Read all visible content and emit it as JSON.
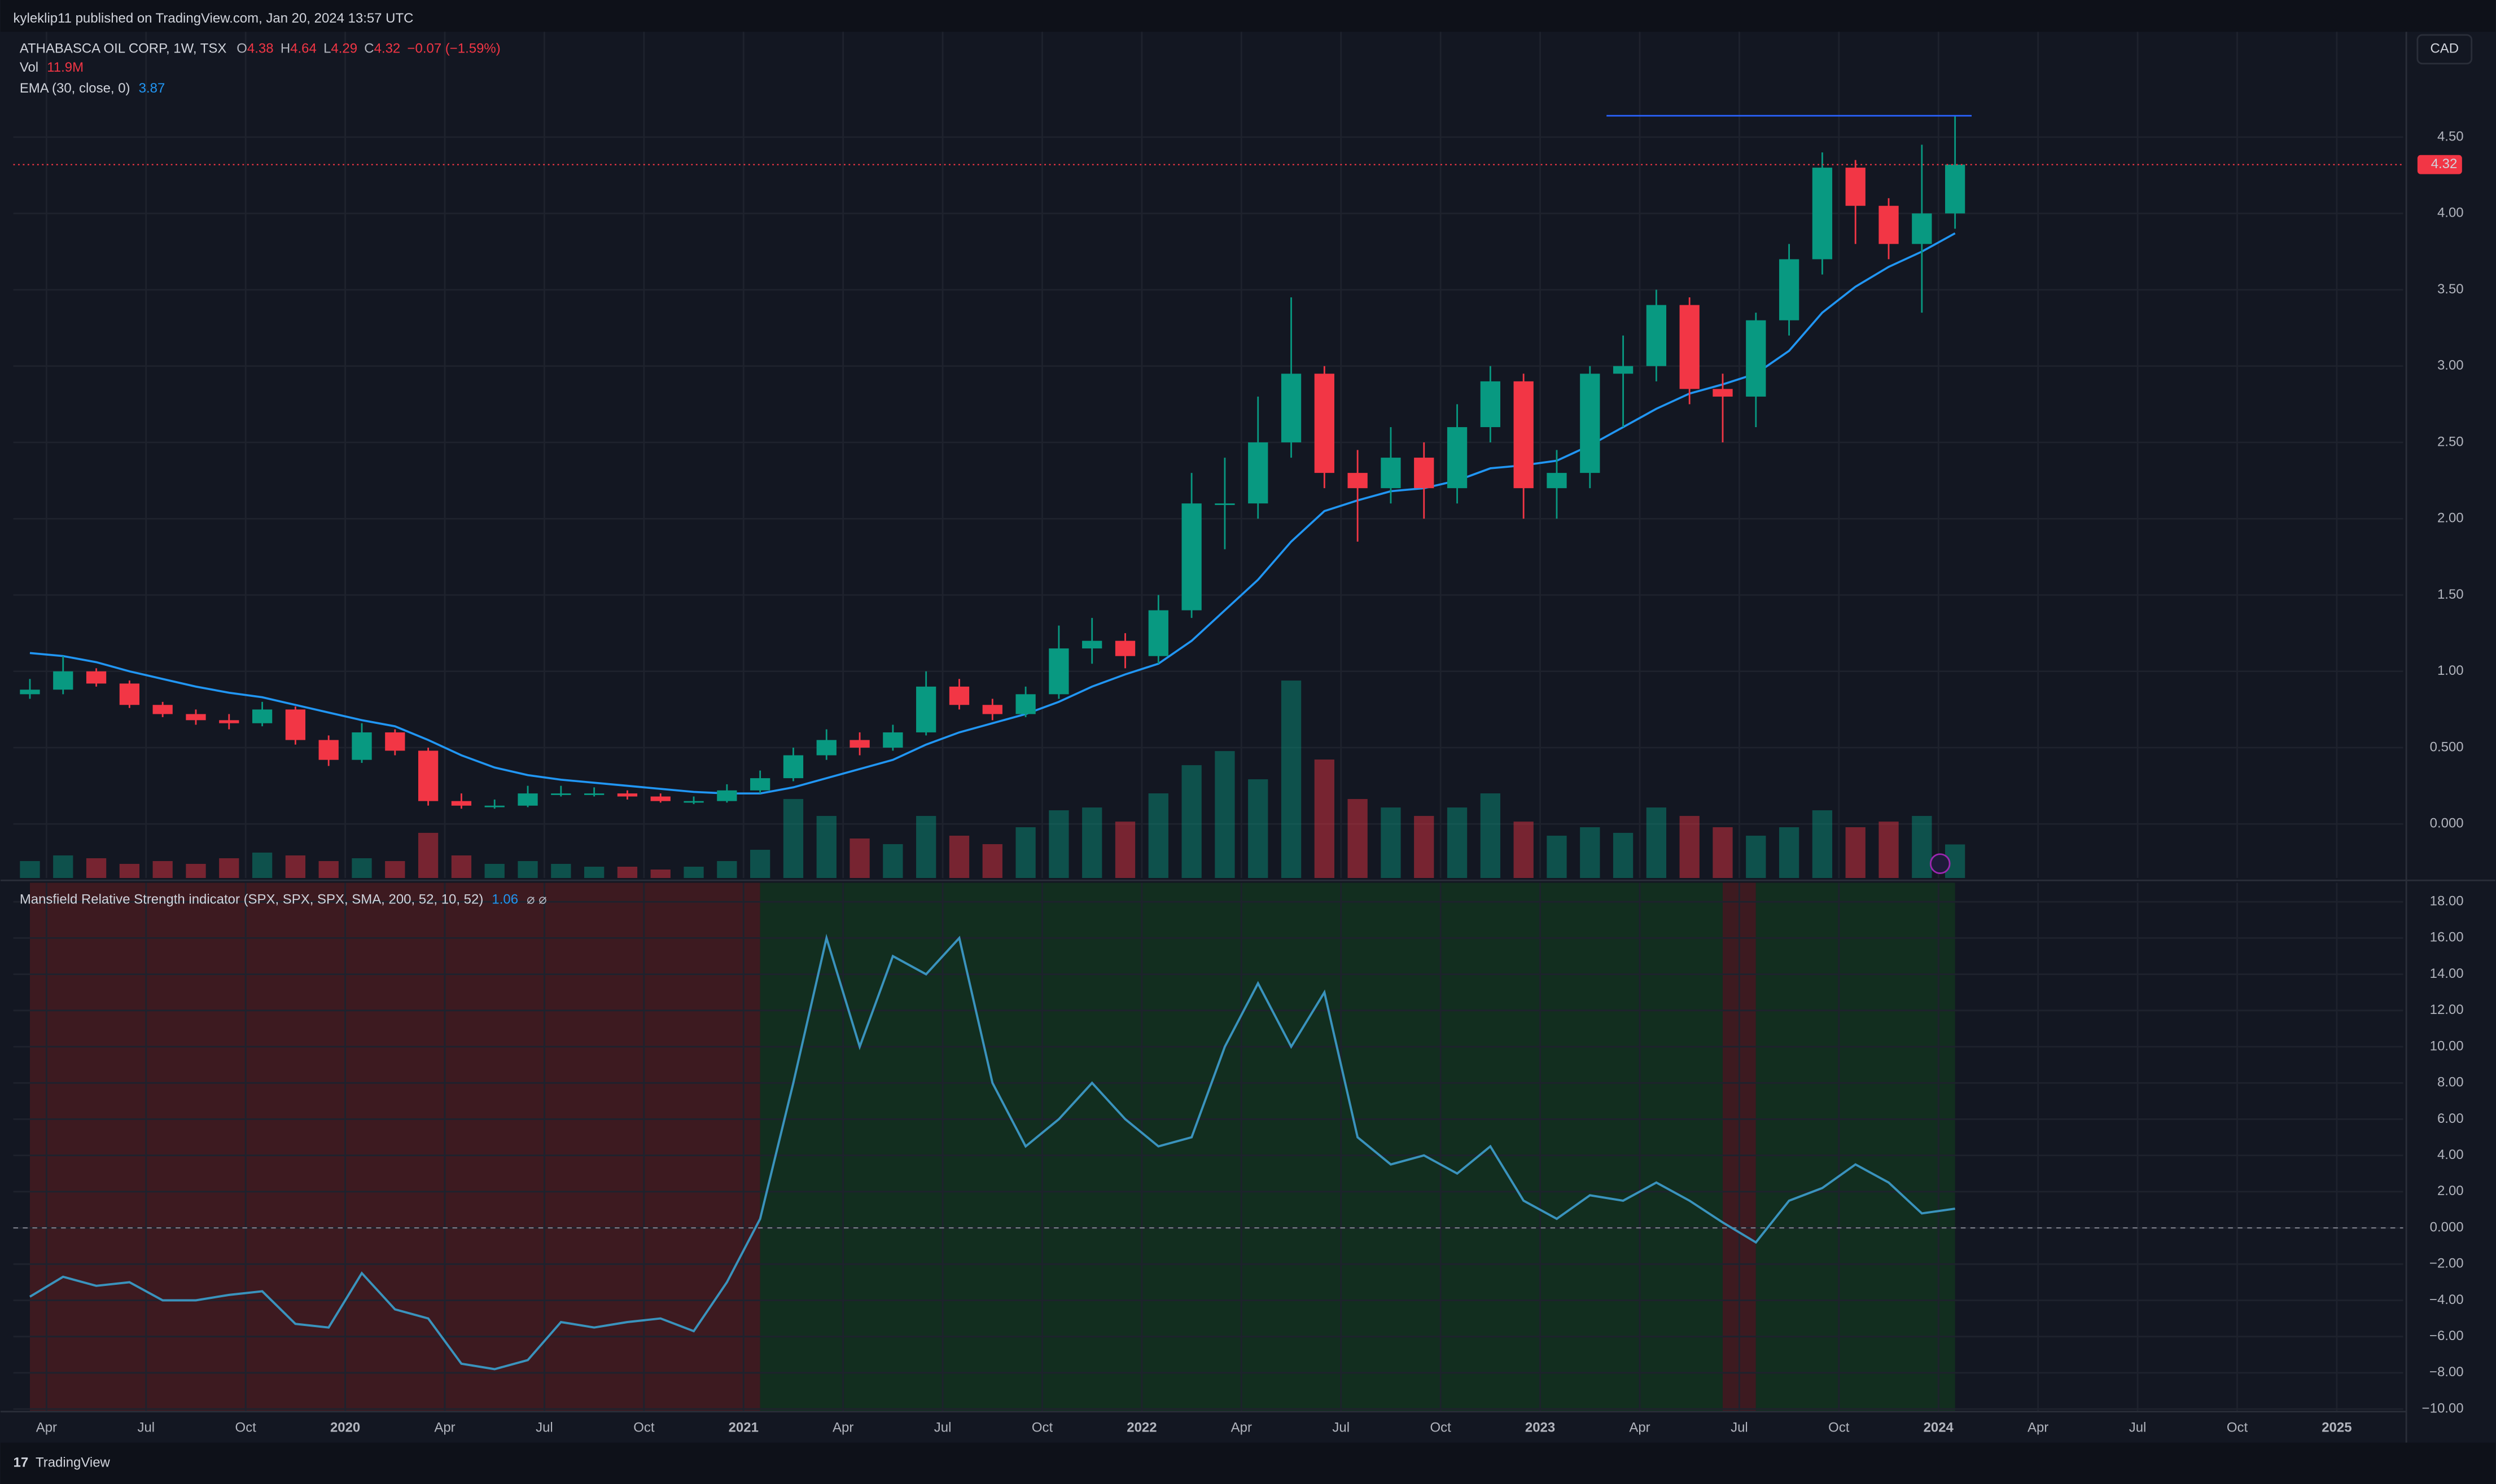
{
  "header": {
    "published": "kyleklip11 published on TradingView.com, Jan 20, 2024 13:57 UTC",
    "symbol": "ATHABASCA OIL CORP, 1W, TSX",
    "ohlc": [
      {
        "label": "O",
        "value": 4.38
      },
      {
        "label": "H",
        "value": 4.64
      },
      {
        "label": "L",
        "value": 4.29
      },
      {
        "label": "C",
        "value": 4.32
      }
    ],
    "change": "−0.07 (−1.59%)",
    "vol_label": "Vol",
    "vol_value": "11.9M",
    "ema_label": "EMA (30, close, 0)",
    "ema_value": 3.87,
    "currency": "CAD"
  },
  "chart_data": [
    {
      "type": "candlestick",
      "x": [
        "2019-03",
        "2019-04",
        "2019-05",
        "2019-06",
        "2019-07",
        "2019-08",
        "2019-09",
        "2019-10",
        "2019-11",
        "2019-12",
        "2020-01",
        "2020-02",
        "2020-03",
        "2020-04",
        "2020-05",
        "2020-06",
        "2020-07",
        "2020-08",
        "2020-09",
        "2020-10",
        "2020-11",
        "2020-12",
        "2021-01",
        "2021-02",
        "2021-03",
        "2021-04",
        "2021-05",
        "2021-06",
        "2021-07",
        "2021-08",
        "2021-09",
        "2021-10",
        "2021-11",
        "2021-12",
        "2022-01",
        "2022-02",
        "2022-03",
        "2022-04",
        "2022-05",
        "2022-06",
        "2022-07",
        "2022-08",
        "2022-09",
        "2022-10",
        "2022-11",
        "2022-12",
        "2023-01",
        "2023-02",
        "2023-03",
        "2023-04",
        "2023-05",
        "2023-06",
        "2023-07",
        "2023-08",
        "2023-09",
        "2023-10",
        "2023-11",
        "2023-12",
        "2024-01"
      ],
      "open": [
        0.85,
        0.88,
        1.0,
        0.92,
        0.78,
        0.72,
        0.68,
        0.66,
        0.75,
        0.55,
        0.42,
        0.6,
        0.48,
        0.15,
        0.12,
        0.12,
        0.2,
        0.2,
        0.2,
        0.18,
        0.15,
        0.15,
        0.22,
        0.3,
        0.45,
        0.55,
        0.5,
        0.6,
        0.9,
        0.78,
        0.72,
        0.85,
        1.15,
        1.2,
        1.1,
        1.4,
        2.1,
        2.1,
        2.5,
        2.95,
        2.3,
        2.2,
        2.4,
        2.2,
        2.6,
        2.9,
        2.2,
        2.3,
        2.95,
        3.0,
        3.4,
        2.85,
        2.8,
        3.3,
        3.7,
        4.3,
        4.05,
        3.8,
        4.0
      ],
      "high": [
        0.95,
        1.1,
        1.02,
        0.94,
        0.8,
        0.75,
        0.72,
        0.8,
        0.77,
        0.58,
        0.66,
        0.62,
        0.5,
        0.2,
        0.16,
        0.25,
        0.25,
        0.24,
        0.22,
        0.2,
        0.18,
        0.26,
        0.35,
        0.5,
        0.62,
        0.6,
        0.65,
        1.0,
        0.95,
        0.82,
        0.9,
        1.3,
        1.35,
        1.25,
        1.5,
        2.3,
        2.4,
        2.8,
        3.45,
        3.0,
        2.45,
        2.6,
        2.5,
        2.75,
        3.0,
        2.95,
        2.45,
        3.0,
        3.2,
        3.5,
        3.45,
        2.95,
        3.35,
        3.8,
        4.4,
        4.35,
        4.1,
        4.45,
        4.64
      ],
      "low": [
        0.82,
        0.85,
        0.9,
        0.76,
        0.7,
        0.65,
        0.62,
        0.64,
        0.52,
        0.38,
        0.4,
        0.45,
        0.12,
        0.1,
        0.1,
        0.11,
        0.18,
        0.18,
        0.16,
        0.14,
        0.13,
        0.14,
        0.2,
        0.28,
        0.42,
        0.45,
        0.48,
        0.58,
        0.75,
        0.68,
        0.7,
        0.82,
        1.05,
        1.02,
        1.05,
        1.35,
        1.8,
        2.0,
        2.4,
        2.2,
        1.85,
        2.1,
        2.0,
        2.1,
        2.5,
        2.0,
        2.0,
        2.2,
        2.6,
        2.9,
        2.75,
        2.5,
        2.6,
        3.2,
        3.6,
        3.8,
        3.7,
        3.35,
        3.9
      ],
      "close": [
        0.88,
        1.0,
        0.92,
        0.78,
        0.72,
        0.68,
        0.66,
        0.75,
        0.55,
        0.42,
        0.6,
        0.48,
        0.15,
        0.12,
        0.12,
        0.2,
        0.2,
        0.2,
        0.18,
        0.15,
        0.15,
        0.22,
        0.3,
        0.45,
        0.55,
        0.5,
        0.6,
        0.9,
        0.78,
        0.72,
        0.85,
        1.15,
        1.2,
        1.1,
        1.4,
        2.1,
        2.1,
        2.5,
        2.95,
        2.3,
        2.2,
        2.4,
        2.2,
        2.6,
        2.9,
        2.2,
        2.3,
        2.95,
        3.0,
        3.4,
        2.85,
        2.8,
        3.3,
        3.7,
        4.3,
        4.05,
        3.8,
        4.0,
        4.32
      ],
      "up_color": "#089981",
      "down_color": "#f23645",
      "volume": [
        6,
        8,
        7,
        5,
        6,
        5,
        7,
        9,
        8,
        6,
        7,
        6,
        16,
        8,
        5,
        6,
        5,
        4,
        4,
        3,
        4,
        6,
        10,
        28,
        22,
        14,
        12,
        22,
        15,
        12,
        18,
        24,
        25,
        20,
        30,
        40,
        45,
        35,
        70,
        42,
        28,
        25,
        22,
        25,
        30,
        20,
        15,
        18,
        16,
        25,
        22,
        18,
        15,
        18,
        24,
        18,
        20,
        22,
        11.9
      ],
      "volume_ylim": [
        0,
        300
      ],
      "ema": {
        "name": "EMA (30, close, 0)",
        "color": "#2196f3",
        "values": [
          1.12,
          1.1,
          1.06,
          1.0,
          0.95,
          0.9,
          0.86,
          0.83,
          0.78,
          0.73,
          0.68,
          0.64,
          0.55,
          0.45,
          0.37,
          0.32,
          0.29,
          0.27,
          0.25,
          0.23,
          0.21,
          0.2,
          0.2,
          0.24,
          0.3,
          0.36,
          0.42,
          0.52,
          0.6,
          0.66,
          0.72,
          0.8,
          0.9,
          0.98,
          1.05,
          1.2,
          1.4,
          1.6,
          1.85,
          2.05,
          2.12,
          2.18,
          2.2,
          2.25,
          2.33,
          2.35,
          2.38,
          2.48,
          2.6,
          2.72,
          2.82,
          2.88,
          2.95,
          3.1,
          3.35,
          3.52,
          3.65,
          3.75,
          3.87
        ]
      },
      "hline": {
        "value": 4.64,
        "start": "2023-03",
        "end": "2024-02",
        "color": "#2962ff"
      },
      "last_price": 4.32,
      "last_price_color": "#f23645",
      "xlim": [
        "2019-03",
        "2025-03"
      ],
      "ylim": [
        -0.354,
        5.19
      ],
      "yticks": [
        {
          "value": 4.5,
          "label": "4.50"
        },
        {
          "value": 4.0,
          "label": "4.00"
        },
        {
          "value": 3.5,
          "label": "3.50"
        },
        {
          "value": 3.0,
          "label": "3.00"
        },
        {
          "value": 2.5,
          "label": "2.50"
        },
        {
          "value": 2.0,
          "label": "2.00"
        },
        {
          "value": 1.5,
          "label": "1.50"
        },
        {
          "value": 1.0,
          "label": "1.00"
        },
        {
          "value": 0.5,
          "label": "0.500"
        },
        {
          "value": 0,
          "label": "0.000"
        }
      ],
      "grid": true
    },
    {
      "type": "line",
      "title": "Mansfield Relative Strength indicator (SPX, SPX, SPX, SMA, 200, 52, 10, 52)",
      "current_value": 1.06,
      "flags": "⌀ ⌀",
      "x": [
        "2019-03",
        "2019-04",
        "2019-05",
        "2019-06",
        "2019-07",
        "2019-08",
        "2019-09",
        "2019-10",
        "2019-11",
        "2019-12",
        "2020-01",
        "2020-02",
        "2020-03",
        "2020-04",
        "2020-05",
        "2020-06",
        "2020-07",
        "2020-08",
        "2020-09",
        "2020-10",
        "2020-11",
        "2020-12",
        "2021-01",
        "2021-02",
        "2021-03",
        "2021-04",
        "2021-05",
        "2021-06",
        "2021-07",
        "2021-08",
        "2021-09",
        "2021-10",
        "2021-11",
        "2021-12",
        "2022-01",
        "2022-02",
        "2022-03",
        "2022-04",
        "2022-05",
        "2022-06",
        "2022-07",
        "2022-08",
        "2022-09",
        "2022-10",
        "2022-11",
        "2022-12",
        "2023-01",
        "2023-02",
        "2023-03",
        "2023-04",
        "2023-05",
        "2023-06",
        "2023-07",
        "2023-08",
        "2023-09",
        "2023-10",
        "2023-11",
        "2023-12",
        "2024-01"
      ],
      "series": [
        {
          "name": "Mansfield RS",
          "color": "#3a93bd",
          "values": [
            -3.8,
            -2.7,
            -3.2,
            -3.0,
            -4.0,
            -4.0,
            -3.7,
            -3.5,
            -5.3,
            -5.5,
            -2.5,
            -4.5,
            -5.0,
            -7.5,
            -7.8,
            -7.3,
            -5.2,
            -5.5,
            -5.2,
            -5.0,
            -5.7,
            -3.0,
            0.5,
            8,
            16,
            10,
            15,
            14,
            16,
            8,
            4.5,
            6,
            8,
            6,
            4.5,
            5,
            10,
            13.5,
            10,
            13,
            5,
            3.5,
            4,
            3,
            4.5,
            1.5,
            0.5,
            1.8,
            1.5,
            2.5,
            1.5,
            0.3,
            -0.8,
            1.5,
            2.2,
            3.5,
            2.5,
            0.8,
            1.06
          ]
        }
      ],
      "zones": [
        {
          "start": "2019-03",
          "end": "2021-01",
          "color": "#3d1a20"
        },
        {
          "start": "2021-01",
          "end": "2023-06",
          "color": "#122e1f"
        },
        {
          "start": "2023-06",
          "end": "2023-07",
          "color": "#3d1a20"
        },
        {
          "start": "2023-07",
          "end": "2024-01",
          "color": "#122e1f"
        }
      ],
      "zero_line": true,
      "xlim": [
        "2019-03",
        "2025-03"
      ],
      "ylim": [
        -10.1,
        19.05
      ],
      "yticks": [
        {
          "value": 18,
          "label": "18.00"
        },
        {
          "value": 16,
          "label": "16.00"
        },
        {
          "value": 14,
          "label": "14.00"
        },
        {
          "value": 12,
          "label": "12.00"
        },
        {
          "value": 10,
          "label": "10.00"
        },
        {
          "value": 8,
          "label": "8.00"
        },
        {
          "value": 6,
          "label": "6.00"
        },
        {
          "value": 4,
          "label": "4.00"
        },
        {
          "value": 2,
          "label": "2.00"
        },
        {
          "value": 0,
          "label": "0.000"
        },
        {
          "value": -2,
          "label": "−2.00"
        },
        {
          "value": -4,
          "label": "−4.00"
        },
        {
          "value": -6,
          "label": "−6.00"
        },
        {
          "value": -8,
          "label": "−8.00"
        },
        {
          "value": -10,
          "label": "−10.00"
        }
      ],
      "xticks": [
        {
          "value": "2019-04",
          "label": "Apr"
        },
        {
          "value": "2019-07",
          "label": "Jul"
        },
        {
          "value": "2019-10",
          "label": "Oct"
        },
        {
          "value": "2020-01",
          "label": "2020"
        },
        {
          "value": "2020-04",
          "label": "Apr"
        },
        {
          "value": "2020-07",
          "label": "Jul"
        },
        {
          "value": "2020-10",
          "label": "Oct"
        },
        {
          "value": "2021-01",
          "label": "2021"
        },
        {
          "value": "2021-04",
          "label": "Apr"
        },
        {
          "value": "2021-07",
          "label": "Jul"
        },
        {
          "value": "2021-10",
          "label": "Oct"
        },
        {
          "value": "2022-01",
          "label": "2022"
        },
        {
          "value": "2022-04",
          "label": "Apr"
        },
        {
          "value": "2022-07",
          "label": "Jul"
        },
        {
          "value": "2022-10",
          "label": "Oct"
        },
        {
          "value": "2023-01",
          "label": "2023"
        },
        {
          "value": "2023-04",
          "label": "Apr"
        },
        {
          "value": "2023-07",
          "label": "Jul"
        },
        {
          "value": "2023-10",
          "label": "Oct"
        },
        {
          "value": "2024-01",
          "label": "2024"
        },
        {
          "value": "2024-04",
          "label": "Apr"
        },
        {
          "value": "2024-07",
          "label": "Jul"
        },
        {
          "value": "2024-10",
          "label": "Oct"
        },
        {
          "value": "2025-01",
          "label": "2025"
        }
      ],
      "grid": true
    }
  ],
  "footer": "TradingView"
}
